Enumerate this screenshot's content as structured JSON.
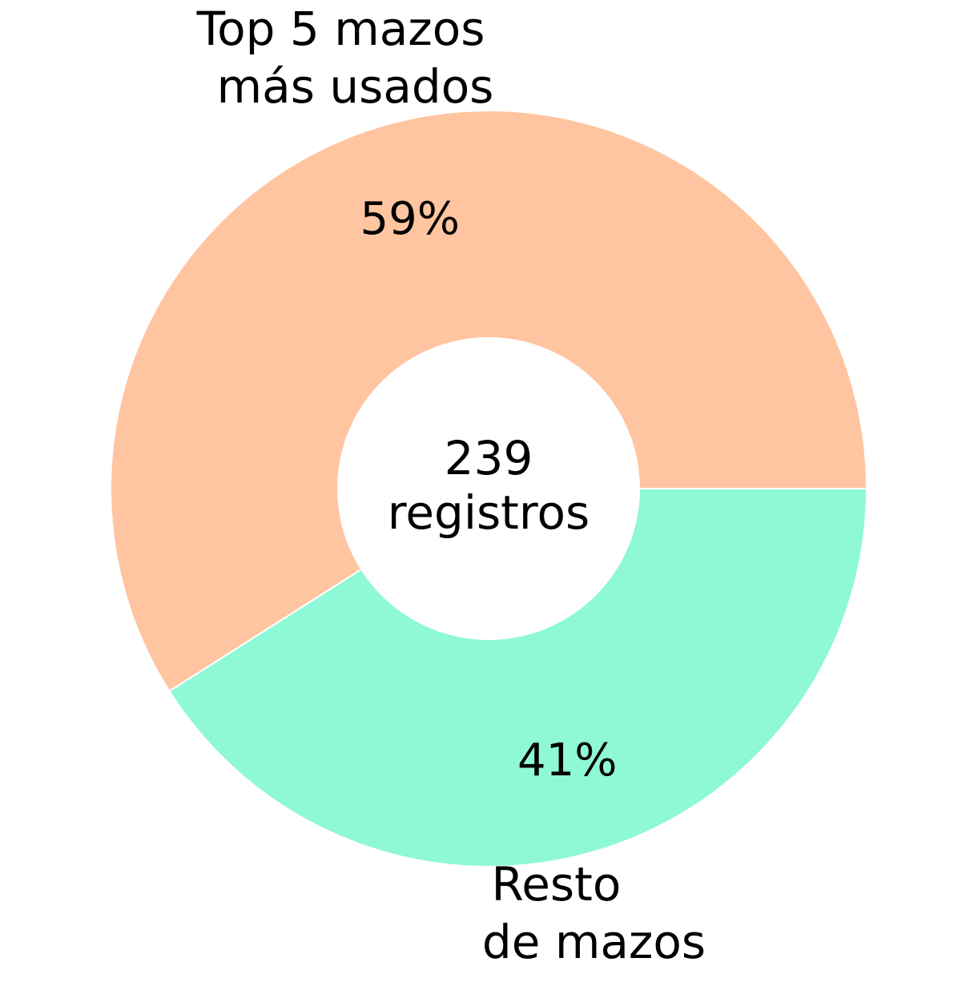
{
  "chart_data": {
    "type": "pie",
    "variant": "donut",
    "slices": [
      {
        "label_lines": [
          "Top 5 mazos",
          "más usados"
        ],
        "value": 59,
        "pct_label": "59%",
        "color": "#FFC5A0"
      },
      {
        "label_lines": [
          "Resto",
          "de mazos"
        ],
        "value": 41,
        "pct_label": "41%",
        "color": "#8EF8D7"
      }
    ],
    "center_text": [
      "239",
      "registros"
    ],
    "edge_color": "#ffffff",
    "legend": false
  }
}
